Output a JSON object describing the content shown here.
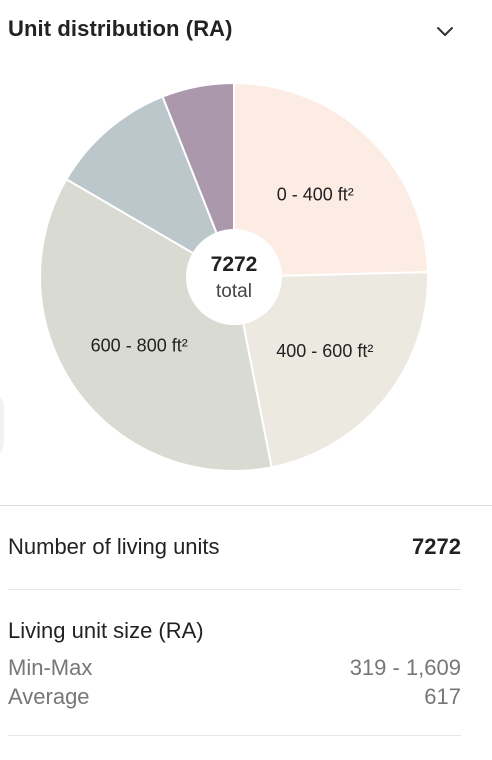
{
  "header": {
    "title": "Unit distribution (RA)",
    "toggle_icon": "chevron-down-icon"
  },
  "chart_data": {
    "type": "pie",
    "style": "donut-center-label",
    "center": {
      "value": "7272",
      "label": "total"
    },
    "slices": [
      {
        "label": "0 - 400 ft²",
        "value": 24.6,
        "color": "#fdece4"
      },
      {
        "label": "400 - 600 ft²",
        "value": 22.3,
        "color": "#ece9e1"
      },
      {
        "label": "600 - 800 ft²",
        "value": 36.5,
        "color": "#d9dbd2"
      },
      {
        "label": "",
        "value": 10.6,
        "color": "#bcc7cb"
      },
      {
        "label": "",
        "value": 6.0,
        "color": "#ab98ad"
      }
    ]
  },
  "stats": {
    "units_label": "Number of living units",
    "units_value": "7272",
    "size_title": "Living unit size (RA)",
    "minmax_label": "Min-Max",
    "minmax_value": "319 - 1,609",
    "average_label": "Average",
    "average_value": "617"
  }
}
